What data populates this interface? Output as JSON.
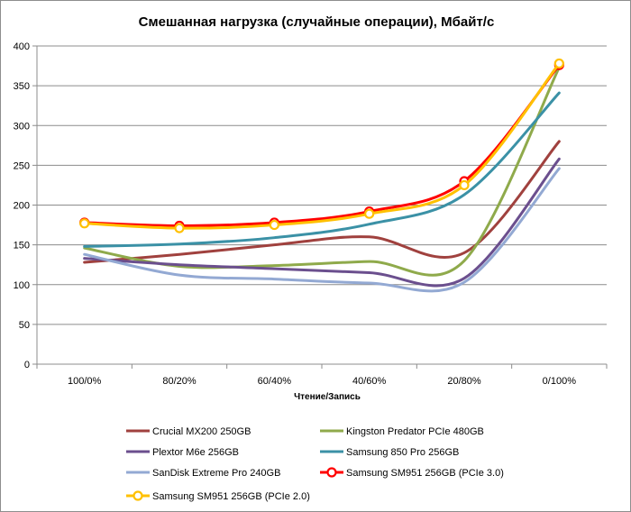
{
  "chart_data": {
    "type": "line",
    "title": "Смешанная нагрузка (случайные операции), Мбайт/с",
    "xlabel": "Чтение/Запись",
    "ylabel": "",
    "categories": [
      "100/0%",
      "80/20%",
      "60/40%",
      "40/60%",
      "20/80%",
      "0/100%"
    ],
    "ylim": [
      0,
      400
    ],
    "yticks": [
      "0",
      "50",
      "100",
      "150",
      "200",
      "250",
      "300",
      "350",
      "400"
    ],
    "grid": true,
    "legend_position": "bottom",
    "series": [
      {
        "name": "Crucial MX200 250GB",
        "color": "#a0413e",
        "marker": "none",
        "values": [
          128,
          138,
          150,
          160,
          140,
          280
        ]
      },
      {
        "name": "Kingston Predator PCIe 480GB",
        "color": "#8faa4b",
        "marker": "none",
        "values": [
          146,
          123,
          124,
          129,
          130,
          373
        ]
      },
      {
        "name": "Plextor M6e 256GB",
        "color": "#6b4f8e",
        "marker": "none",
        "values": [
          133,
          125,
          120,
          115,
          108,
          258
        ]
      },
      {
        "name": "Samsung 850 Pro 256GB",
        "color": "#3b91a6",
        "marker": "none",
        "values": [
          148,
          151,
          159,
          176,
          213,
          341
        ]
      },
      {
        "name": "SanDisk Extreme Pro 240GB",
        "color": "#93a9d3",
        "marker": "none",
        "values": [
          138,
          112,
          107,
          102,
          103,
          246
        ]
      },
      {
        "name": "Samsung SM951 256GB (PCIe 3.0)",
        "color": "#ff0000",
        "marker": "circle",
        "values": [
          178,
          174,
          178,
          192,
          230,
          376
        ]
      },
      {
        "name": "Samsung SM951 256GB (PCIe 2.0)",
        "color": "#ffc000",
        "marker": "circle",
        "values": [
          177,
          171,
          175,
          189,
          225,
          378
        ]
      }
    ]
  }
}
